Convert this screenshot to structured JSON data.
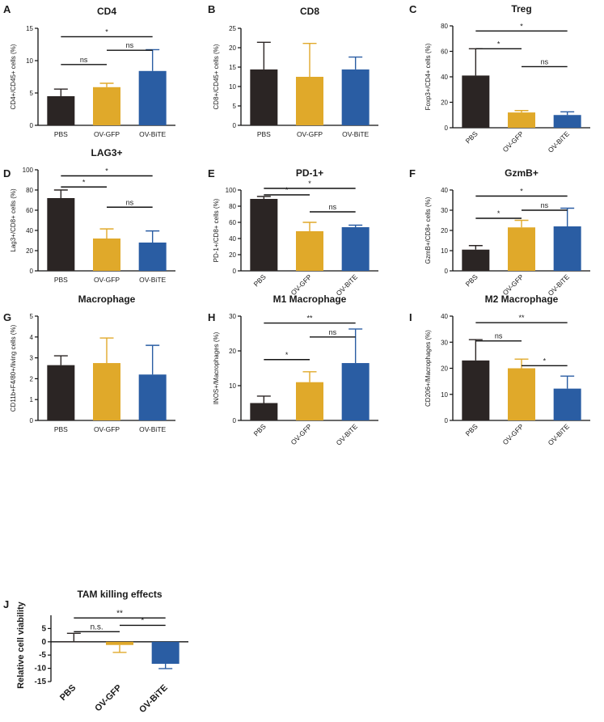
{
  "colors": {
    "PBS": "#2b2524",
    "OV-GFP": "#e0a92a",
    "OV-BiTE": "#2a5da3",
    "line": "#111111"
  },
  "chart_data": [
    {
      "id": "A",
      "letter": "A",
      "type": "bar",
      "title": "CD4",
      "ylabel": "CD4+/CD45+ cells (%)",
      "categories": [
        "PBS",
        "OV-GFP",
        "OV-BiTE"
      ],
      "values": [
        4.5,
        5.9,
        8.4
      ],
      "errors": [
        1.1,
        0.6,
        3.3
      ],
      "ylim": [
        0,
        15
      ],
      "yticks": [
        "0",
        "5",
        "10",
        "15"
      ],
      "ytick_values": [
        0,
        5,
        10,
        15
      ],
      "xrot": false,
      "brackets": [
        {
          "from": 0,
          "to": 1,
          "y": 9.4,
          "label": "ns"
        },
        {
          "from": 1,
          "to": 2,
          "y": 11.6,
          "label": "ns"
        },
        {
          "from": 0,
          "to": 2,
          "y": 13.7,
          "label": "*"
        }
      ]
    },
    {
      "id": "B",
      "letter": "B",
      "type": "bar",
      "title": "CD8",
      "ylabel": "CD8+/CD45+ cells (%)",
      "categories": [
        "PBS",
        "OV-GFP",
        "OV-BiTE"
      ],
      "values": [
        14.4,
        12.5,
        14.4
      ],
      "errors": [
        7.0,
        8.6,
        3.2
      ],
      "ylim": [
        0,
        25
      ],
      "yticks": [
        "0",
        "5",
        "10",
        "15",
        "20",
        "25"
      ],
      "ytick_values": [
        0,
        5,
        10,
        15,
        20,
        25
      ],
      "xrot": false,
      "brackets": []
    },
    {
      "id": "C",
      "letter": "C",
      "type": "bar",
      "title": "Treg",
      "ylabel": "Foxp3+/CD4+ cells (%)",
      "categories": [
        "PBS",
        "OV-GFP",
        "OV-BiTE"
      ],
      "values": [
        41,
        12,
        10
      ],
      "errors": [
        21,
        1.5,
        2.5
      ],
      "ylim": [
        0,
        80
      ],
      "yticks": [
        "0",
        "20",
        "40",
        "60",
        "80"
      ],
      "ytick_values": [
        0,
        20,
        40,
        60,
        80
      ],
      "xrot": true,
      "brackets": [
        {
          "from": 0,
          "to": 1,
          "y": 62,
          "label": "*"
        },
        {
          "from": 1,
          "to": 2,
          "y": 48,
          "label": "ns"
        },
        {
          "from": 0,
          "to": 2,
          "y": 76,
          "label": "*"
        }
      ]
    },
    {
      "id": "D",
      "letter": "D",
      "type": "bar",
      "title": "LAG3+",
      "ylabel": "Lag3+/CD8+ cells (%)",
      "categories": [
        "PBS",
        "OV-GFP",
        "OV-BiTE"
      ],
      "values": [
        72,
        32,
        28
      ],
      "errors": [
        8,
        9.5,
        11.5
      ],
      "ylim": [
        0,
        100
      ],
      "yticks": [
        "0",
        "20",
        "40",
        "60",
        "80",
        "100"
      ],
      "ytick_values": [
        0,
        20,
        40,
        60,
        80,
        100
      ],
      "xrot": false,
      "brackets": [
        {
          "from": 0,
          "to": 1,
          "y": 83,
          "label": "*"
        },
        {
          "from": 1,
          "to": 2,
          "y": 63,
          "label": "ns"
        },
        {
          "from": 0,
          "to": 2,
          "y": 94,
          "label": "*"
        }
      ]
    },
    {
      "id": "E",
      "letter": "E",
      "type": "bar",
      "title": "PD-1+",
      "ylabel": "PD-1+/CD8+ cells (%)",
      "categories": [
        "PBS",
        "OV-GFP",
        "OV-BiTE"
      ],
      "values": [
        89,
        49,
        54
      ],
      "errors": [
        3,
        11,
        2.5
      ],
      "ylim": [
        0,
        100
      ],
      "yticks": [
        "0",
        "20",
        "40",
        "60",
        "80",
        "100"
      ],
      "ytick_values": [
        0,
        20,
        40,
        60,
        80,
        100
      ],
      "xrot": true,
      "brackets": [
        {
          "from": 0,
          "to": 1,
          "y": 94,
          "label": "*"
        },
        {
          "from": 1,
          "to": 2,
          "y": 73,
          "label": "ns"
        },
        {
          "from": 0,
          "to": 2,
          "y": 102,
          "label": "*"
        }
      ]
    },
    {
      "id": "F",
      "letter": "F",
      "type": "bar",
      "title": "GzmB+",
      "ylabel": "GzmB+/CD8+ cells (%)",
      "categories": [
        "PBS",
        "OV-GFP",
        "OV-BiTE"
      ],
      "values": [
        10.5,
        21.5,
        22
      ],
      "errors": [
        2,
        3.5,
        9
      ],
      "ylim": [
        0,
        40
      ],
      "yticks": [
        "0",
        "10",
        "20",
        "30",
        "40"
      ],
      "ytick_values": [
        0,
        10,
        20,
        30,
        40
      ],
      "xrot": true,
      "brackets": [
        {
          "from": 0,
          "to": 1,
          "y": 26,
          "label": "*"
        },
        {
          "from": 1,
          "to": 2,
          "y": 30,
          "label": "ns"
        },
        {
          "from": 0,
          "to": 2,
          "y": 37,
          "label": "*"
        }
      ]
    },
    {
      "id": "G",
      "letter": "G",
      "type": "bar",
      "title": "Macrophage",
      "ylabel": "CD11b+F4/80+/living cells (%)",
      "categories": [
        "PBS",
        "OV-GFP",
        "OV-BiTE"
      ],
      "values": [
        2.65,
        2.75,
        2.2
      ],
      "errors": [
        0.45,
        1.2,
        1.4
      ],
      "ylim": [
        0,
        5
      ],
      "yticks": [
        "0",
        "1",
        "2",
        "3",
        "4",
        "5"
      ],
      "ytick_values": [
        0,
        1,
        2,
        3,
        4,
        5
      ],
      "xrot": false,
      "brackets": []
    },
    {
      "id": "H",
      "letter": "H",
      "type": "bar",
      "title": "M1 Macrophage",
      "ylabel": "INOS+/Macrophages (%)",
      "categories": [
        "PBS",
        "OV-GFP",
        "OV-BiTE"
      ],
      "values": [
        5,
        11,
        16.5
      ],
      "errors": [
        2,
        3,
        9.8
      ],
      "ylim": [
        0,
        30
      ],
      "yticks": [
        "0",
        "10",
        "20",
        "30"
      ],
      "ytick_values": [
        0,
        10,
        20,
        30
      ],
      "xrot": true,
      "brackets": [
        {
          "from": 0,
          "to": 1,
          "y": 17.5,
          "label": "*"
        },
        {
          "from": 1,
          "to": 2,
          "y": 24,
          "label": "ns"
        },
        {
          "from": 0,
          "to": 2,
          "y": 28,
          "label": "**"
        }
      ]
    },
    {
      "id": "I",
      "letter": "I",
      "type": "bar",
      "title": "M2 Macrophage",
      "ylabel": "CD206+/Macrophages (%)",
      "categories": [
        "PBS",
        "OV-GFP",
        "OV-BiTE"
      ],
      "values": [
        23,
        20,
        12.2
      ],
      "errors": [
        8,
        3.5,
        4.8
      ],
      "ylim": [
        0,
        40
      ],
      "yticks": [
        "0",
        "10",
        "20",
        "30",
        "40"
      ],
      "ytick_values": [
        0,
        10,
        20,
        30,
        40
      ],
      "xrot": true,
      "brackets": [
        {
          "from": 0,
          "to": 1,
          "y": 30.5,
          "label": "ns"
        },
        {
          "from": 1,
          "to": 2,
          "y": 21,
          "label": "*"
        },
        {
          "from": 0,
          "to": 2,
          "y": 37.5,
          "label": "**"
        }
      ]
    },
    {
      "id": "J",
      "letter": "J",
      "type": "bar",
      "title": "TAM killing effects",
      "ylabel": "Relative cell viability",
      "categories": [
        "PBS",
        "OV-GFP",
        "OV-BiTE"
      ],
      "values": [
        0.2,
        -1.2,
        -8.3
      ],
      "errors": [
        3.0,
        2.8,
        1.8
      ],
      "ylim": [
        -15,
        10
      ],
      "yticks": [
        "-15",
        "-10",
        "-5",
        "0",
        "5"
      ],
      "ytick_values": [
        -15,
        -10,
        -5,
        0,
        5
      ],
      "xrot": true,
      "brackets": [
        {
          "from": 0,
          "to": 1,
          "y": 3.8,
          "label": "n.s."
        },
        {
          "from": 1,
          "to": 2,
          "y": 6.2,
          "label": "*"
        },
        {
          "from": 0,
          "to": 2,
          "y": 9.0,
          "label": "**"
        }
      ]
    }
  ]
}
